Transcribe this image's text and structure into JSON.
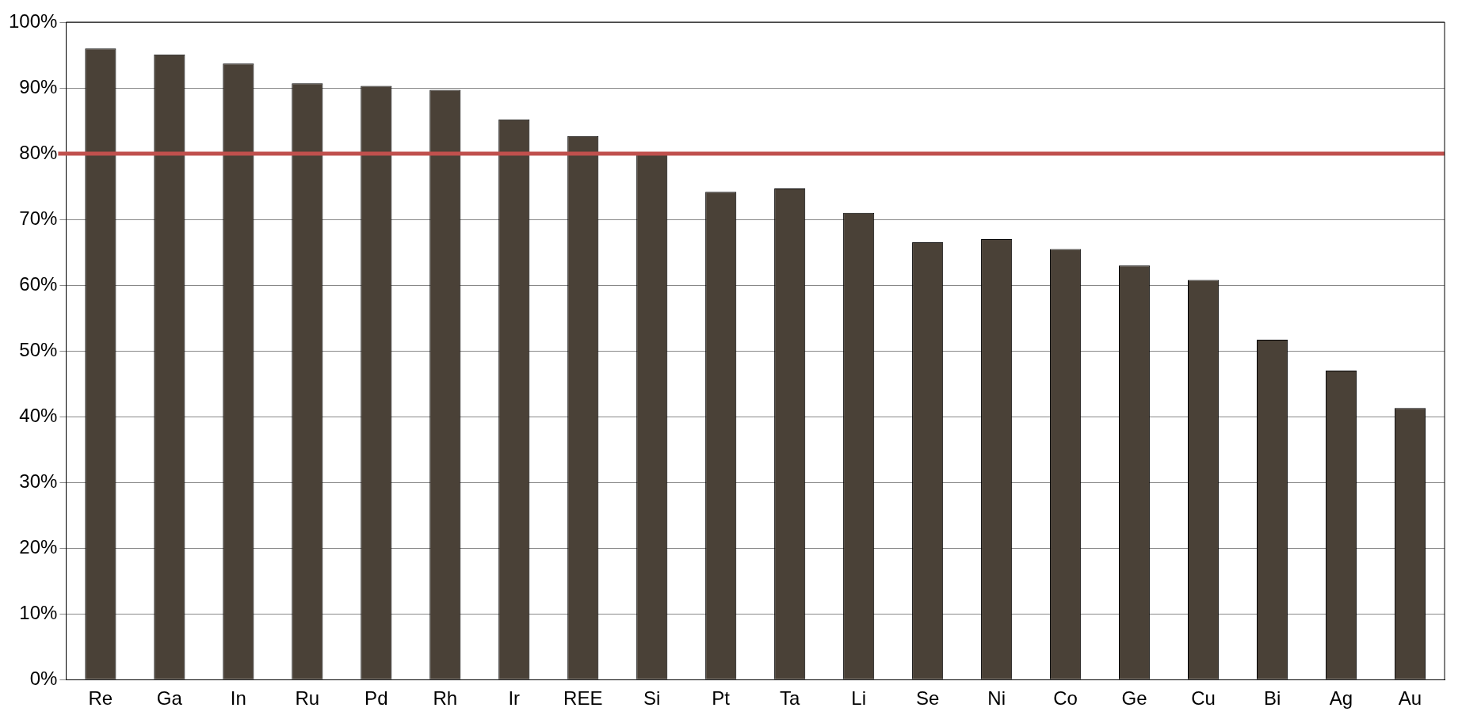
{
  "chart_data": {
    "type": "bar",
    "categories": [
      "Re",
      "Ga",
      "In",
      "Ru",
      "Pd",
      "Rh",
      "Ir",
      "REE",
      "Si",
      "Pt",
      "Ta",
      "Li",
      "Se",
      "Ni",
      "Co",
      "Ge",
      "Cu",
      "Bi",
      "Ag",
      "Au"
    ],
    "values": [
      96,
      95.1,
      93.7,
      90.7,
      90.3,
      89.7,
      85.2,
      82.7,
      80,
      74.2,
      74.7,
      71,
      66.5,
      67,
      65.5,
      63,
      60.8,
      51.7,
      47,
      41.3
    ],
    "color": "#4a4137",
    "ylim": [
      0,
      100
    ],
    "yticks": [
      {
        "value": 0,
        "label": "0%"
      },
      {
        "value": 10,
        "label": "10%"
      },
      {
        "value": 20,
        "label": "20%"
      },
      {
        "value": 30,
        "label": "30%"
      },
      {
        "value": 40,
        "label": "40%"
      },
      {
        "value": 50,
        "label": "50%"
      },
      {
        "value": 60,
        "label": "60%"
      },
      {
        "value": 70,
        "label": "70%"
      },
      {
        "value": 80,
        "label": "80%"
      },
      {
        "value": 90,
        "label": "90%"
      },
      {
        "value": 100,
        "label": "100%"
      }
    ],
    "grid": "y",
    "ref_lines": [
      {
        "axis": "y",
        "value": 80,
        "color": "#c0504d"
      }
    ]
  }
}
